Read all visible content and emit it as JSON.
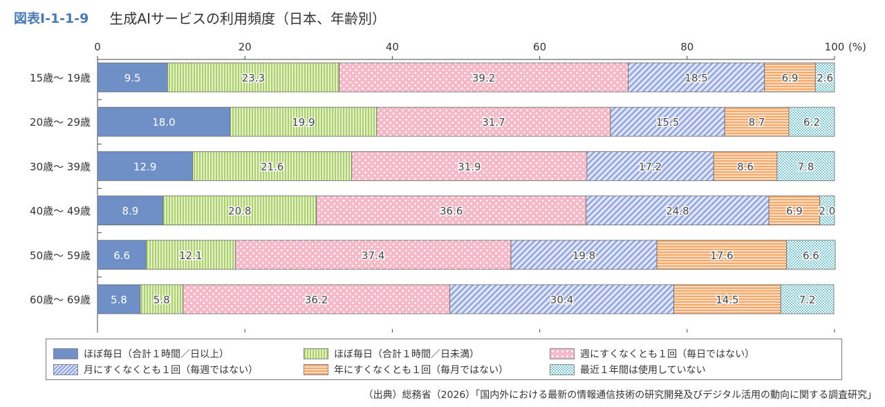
{
  "figure": {
    "number": "図表Ⅰ-1-1-9",
    "title": "生成AIサービスの利用頻度（日本、年齢別）",
    "source": "（出典）総務省（2026）「国内外における最新の情報通信技術の研究開発及びデジタル活用の動向に関する調査研究」"
  },
  "colors": {
    "daily_1h_plus": "#6f8fc7",
    "daily_under_1h": "#cfe5a3",
    "weekly": "#f7cad6",
    "monthly": "#b9c5ea",
    "yearly": "#f6c191",
    "not_used": "#bfe4ea"
  },
  "chart_data": {
    "type": "bar",
    "orientation": "horizontal",
    "stacked": true,
    "x_axis_unit": "(%)",
    "xlim": [
      0,
      100
    ],
    "x_ticks": [
      "0",
      "20",
      "40",
      "60",
      "80",
      "100"
    ],
    "categories": [
      "15歳～ 19歳",
      "20歳～ 29歳",
      "30歳～ 39歳",
      "40歳～ 49歳",
      "50歳～ 59歳",
      "60歳～ 69歳"
    ],
    "series": [
      {
        "name": "ほぼ毎日（合計１時間／日以上）",
        "values": [
          9.5,
          18.0,
          12.9,
          8.9,
          6.6,
          5.8
        ],
        "labels": [
          "9.5",
          "18.0",
          "12.9",
          "8.9",
          "6.6",
          "5.8"
        ]
      },
      {
        "name": "ほぼ毎日（合計１時間／日未満）",
        "values": [
          23.3,
          19.9,
          21.6,
          20.8,
          12.1,
          5.8
        ],
        "labels": [
          "23.3",
          "19.9",
          "21.6",
          "20.8",
          "12.1",
          "5.8"
        ]
      },
      {
        "name": "週にすくなくとも１回（毎日ではない）",
        "values": [
          39.2,
          31.7,
          31.9,
          36.6,
          37.4,
          36.2
        ],
        "labels": [
          "39.2",
          "31.7",
          "31.9",
          "36.6",
          "37.4",
          "36.2"
        ]
      },
      {
        "name": "月にすくなくとも１回（毎週ではない）",
        "values": [
          18.5,
          15.5,
          17.2,
          24.8,
          19.8,
          30.4
        ],
        "labels": [
          "18.5",
          "15.5",
          "17.2",
          "24.8",
          "19.8",
          "30.4"
        ]
      },
      {
        "name": "年にすくなくとも１回（毎月ではない）",
        "values": [
          6.9,
          8.7,
          8.6,
          6.9,
          17.6,
          14.5
        ],
        "labels": [
          "6.9",
          "8.7",
          "8.6",
          "6.9",
          "17.6",
          "14.5"
        ]
      },
      {
        "name": "最近１年間は使用していない",
        "values": [
          2.6,
          6.2,
          7.8,
          2.0,
          6.6,
          7.2
        ],
        "labels": [
          "2.6",
          "6.2",
          "7.8",
          "2.0",
          "6.6",
          "7.2"
        ]
      }
    ],
    "legend_position": "bottom"
  }
}
